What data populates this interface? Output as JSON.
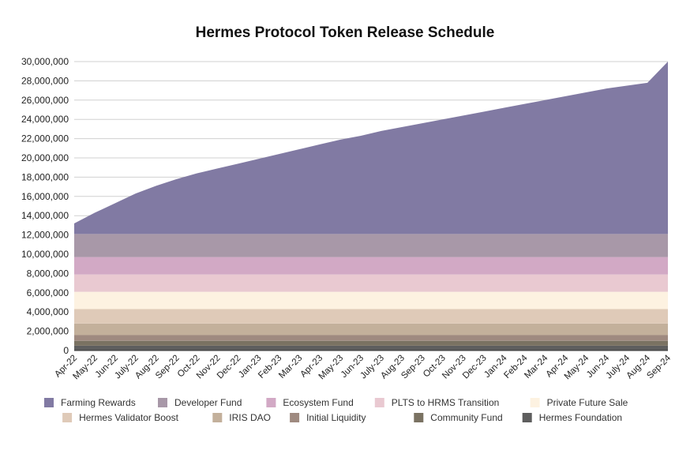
{
  "chart_data": {
    "type": "area",
    "stacked": true,
    "title": "Hermes Protocol Token Release Schedule",
    "xlabel": "",
    "ylabel": "",
    "ylim": [
      0,
      30000000
    ],
    "yticks": [
      0,
      2000000,
      4000000,
      6000000,
      8000000,
      10000000,
      12000000,
      14000000,
      16000000,
      18000000,
      20000000,
      22000000,
      24000000,
      26000000,
      28000000,
      30000000
    ],
    "ytick_labels": [
      "0",
      "2,000,000",
      "4,000,000",
      "6,000,000",
      "8,000,000",
      "10,000,000",
      "12,000,000",
      "14,000,000",
      "16,000,000",
      "18,000,000",
      "20,000,000",
      "22,000,000",
      "24,000,000",
      "26,000,000",
      "28,000,000",
      "30,000,000"
    ],
    "grid": true,
    "legend_position": "bottom",
    "categories": [
      "Apr-22",
      "May-22",
      "Jun-22",
      "July-22",
      "Aug-22",
      "Sep-22",
      "Oct-22",
      "Nov-22",
      "Dec-22",
      "Jan-23",
      "Feb-23",
      "Mar-23",
      "Apr-23",
      "May-23",
      "Jun-23",
      "July-23",
      "Aug-23",
      "Sep-23",
      "Oct-23",
      "Nov-23",
      "Dec-23",
      "Jan-24",
      "Feb-24",
      "Mar-24",
      "Apr-24",
      "May-24",
      "Jun-24",
      "July-24",
      "Aug-24",
      "Sep-24"
    ],
    "series": [
      {
        "name": "Hermes Foundation",
        "color": "#5e5e5e",
        "values": [
          500000,
          500000,
          500000,
          500000,
          500000,
          500000,
          500000,
          500000,
          500000,
          500000,
          500000,
          500000,
          500000,
          500000,
          500000,
          500000,
          500000,
          500000,
          500000,
          500000,
          500000,
          500000,
          500000,
          500000,
          500000,
          500000,
          500000,
          500000,
          500000,
          500000
        ]
      },
      {
        "name": "Community Fund",
        "color": "#7a7262",
        "values": [
          500000,
          500000,
          500000,
          500000,
          500000,
          500000,
          500000,
          500000,
          500000,
          500000,
          500000,
          500000,
          500000,
          500000,
          500000,
          500000,
          500000,
          500000,
          500000,
          500000,
          500000,
          500000,
          500000,
          500000,
          500000,
          500000,
          500000,
          500000,
          500000,
          500000
        ]
      },
      {
        "name": "Initial Liquidity",
        "color": "#9f8a80",
        "values": [
          600000,
          600000,
          600000,
          600000,
          600000,
          600000,
          600000,
          600000,
          600000,
          600000,
          600000,
          600000,
          600000,
          600000,
          600000,
          600000,
          600000,
          600000,
          600000,
          600000,
          600000,
          600000,
          600000,
          600000,
          600000,
          600000,
          600000,
          600000,
          600000,
          600000
        ]
      },
      {
        "name": "IRIS DAO",
        "color": "#c3b09b",
        "values": [
          1200000,
          1200000,
          1200000,
          1200000,
          1200000,
          1200000,
          1200000,
          1200000,
          1200000,
          1200000,
          1200000,
          1200000,
          1200000,
          1200000,
          1200000,
          1200000,
          1200000,
          1200000,
          1200000,
          1200000,
          1200000,
          1200000,
          1200000,
          1200000,
          1200000,
          1200000,
          1200000,
          1200000,
          1200000,
          1200000
        ]
      },
      {
        "name": "Hermes Validator Boost",
        "color": "#dfcab8",
        "values": [
          1500000,
          1500000,
          1500000,
          1500000,
          1500000,
          1500000,
          1500000,
          1500000,
          1500000,
          1500000,
          1500000,
          1500000,
          1500000,
          1500000,
          1500000,
          1500000,
          1500000,
          1500000,
          1500000,
          1500000,
          1500000,
          1500000,
          1500000,
          1500000,
          1500000,
          1500000,
          1500000,
          1500000,
          1500000,
          1500000
        ]
      },
      {
        "name": "Private Future Sale",
        "color": "#fdf2e1",
        "values": [
          1800000,
          1800000,
          1800000,
          1800000,
          1800000,
          1800000,
          1800000,
          1800000,
          1800000,
          1800000,
          1800000,
          1800000,
          1800000,
          1800000,
          1800000,
          1800000,
          1800000,
          1800000,
          1800000,
          1800000,
          1800000,
          1800000,
          1800000,
          1800000,
          1800000,
          1800000,
          1800000,
          1800000,
          1800000,
          1800000
        ]
      },
      {
        "name": "PLTS to HRMS Transition",
        "color": "#e9c9d1",
        "values": [
          1800000,
          1800000,
          1800000,
          1800000,
          1800000,
          1800000,
          1800000,
          1800000,
          1800000,
          1800000,
          1800000,
          1800000,
          1800000,
          1800000,
          1800000,
          1800000,
          1800000,
          1800000,
          1800000,
          1800000,
          1800000,
          1800000,
          1800000,
          1800000,
          1800000,
          1800000,
          1800000,
          1800000,
          1800000,
          1800000
        ]
      },
      {
        "name": "Ecosystem Fund",
        "color": "#d2a9c5",
        "values": [
          1800000,
          1800000,
          1800000,
          1800000,
          1800000,
          1800000,
          1800000,
          1800000,
          1800000,
          1800000,
          1800000,
          1800000,
          1800000,
          1800000,
          1800000,
          1800000,
          1800000,
          1800000,
          1800000,
          1800000,
          1800000,
          1800000,
          1800000,
          1800000,
          1800000,
          1800000,
          1800000,
          1800000,
          1800000,
          1800000
        ]
      },
      {
        "name": "Developer Fund",
        "color": "#a898a8",
        "values": [
          2400000,
          2400000,
          2400000,
          2400000,
          2400000,
          2400000,
          2400000,
          2400000,
          2400000,
          2400000,
          2400000,
          2400000,
          2400000,
          2400000,
          2400000,
          2400000,
          2400000,
          2400000,
          2400000,
          2400000,
          2400000,
          2400000,
          2400000,
          2400000,
          2400000,
          2400000,
          2400000,
          2400000,
          2400000,
          2400000
        ]
      },
      {
        "name": "Farming Rewards",
        "color": "#817aa3",
        "values": [
          1100000,
          2200000,
          3200000,
          4200000,
          5000000,
          5700000,
          6300000,
          6800000,
          7300000,
          7800000,
          8300000,
          8800000,
          9300000,
          9800000,
          10200000,
          10700000,
          11100000,
          11500000,
          11900000,
          12300000,
          12700000,
          13100000,
          13500000,
          13900000,
          14300000,
          14700000,
          15100000,
          15400000,
          15700000,
          17900000
        ]
      }
    ],
    "legend_order": [
      "Farming Rewards",
      "Developer Fund",
      "Ecosystem Fund",
      "PLTS to HRMS Transition",
      "Private Future Sale",
      "Hermes Validator Boost",
      "IRIS DAO",
      "Initial Liquidity",
      "Community Fund",
      "Hermes Foundation"
    ]
  }
}
